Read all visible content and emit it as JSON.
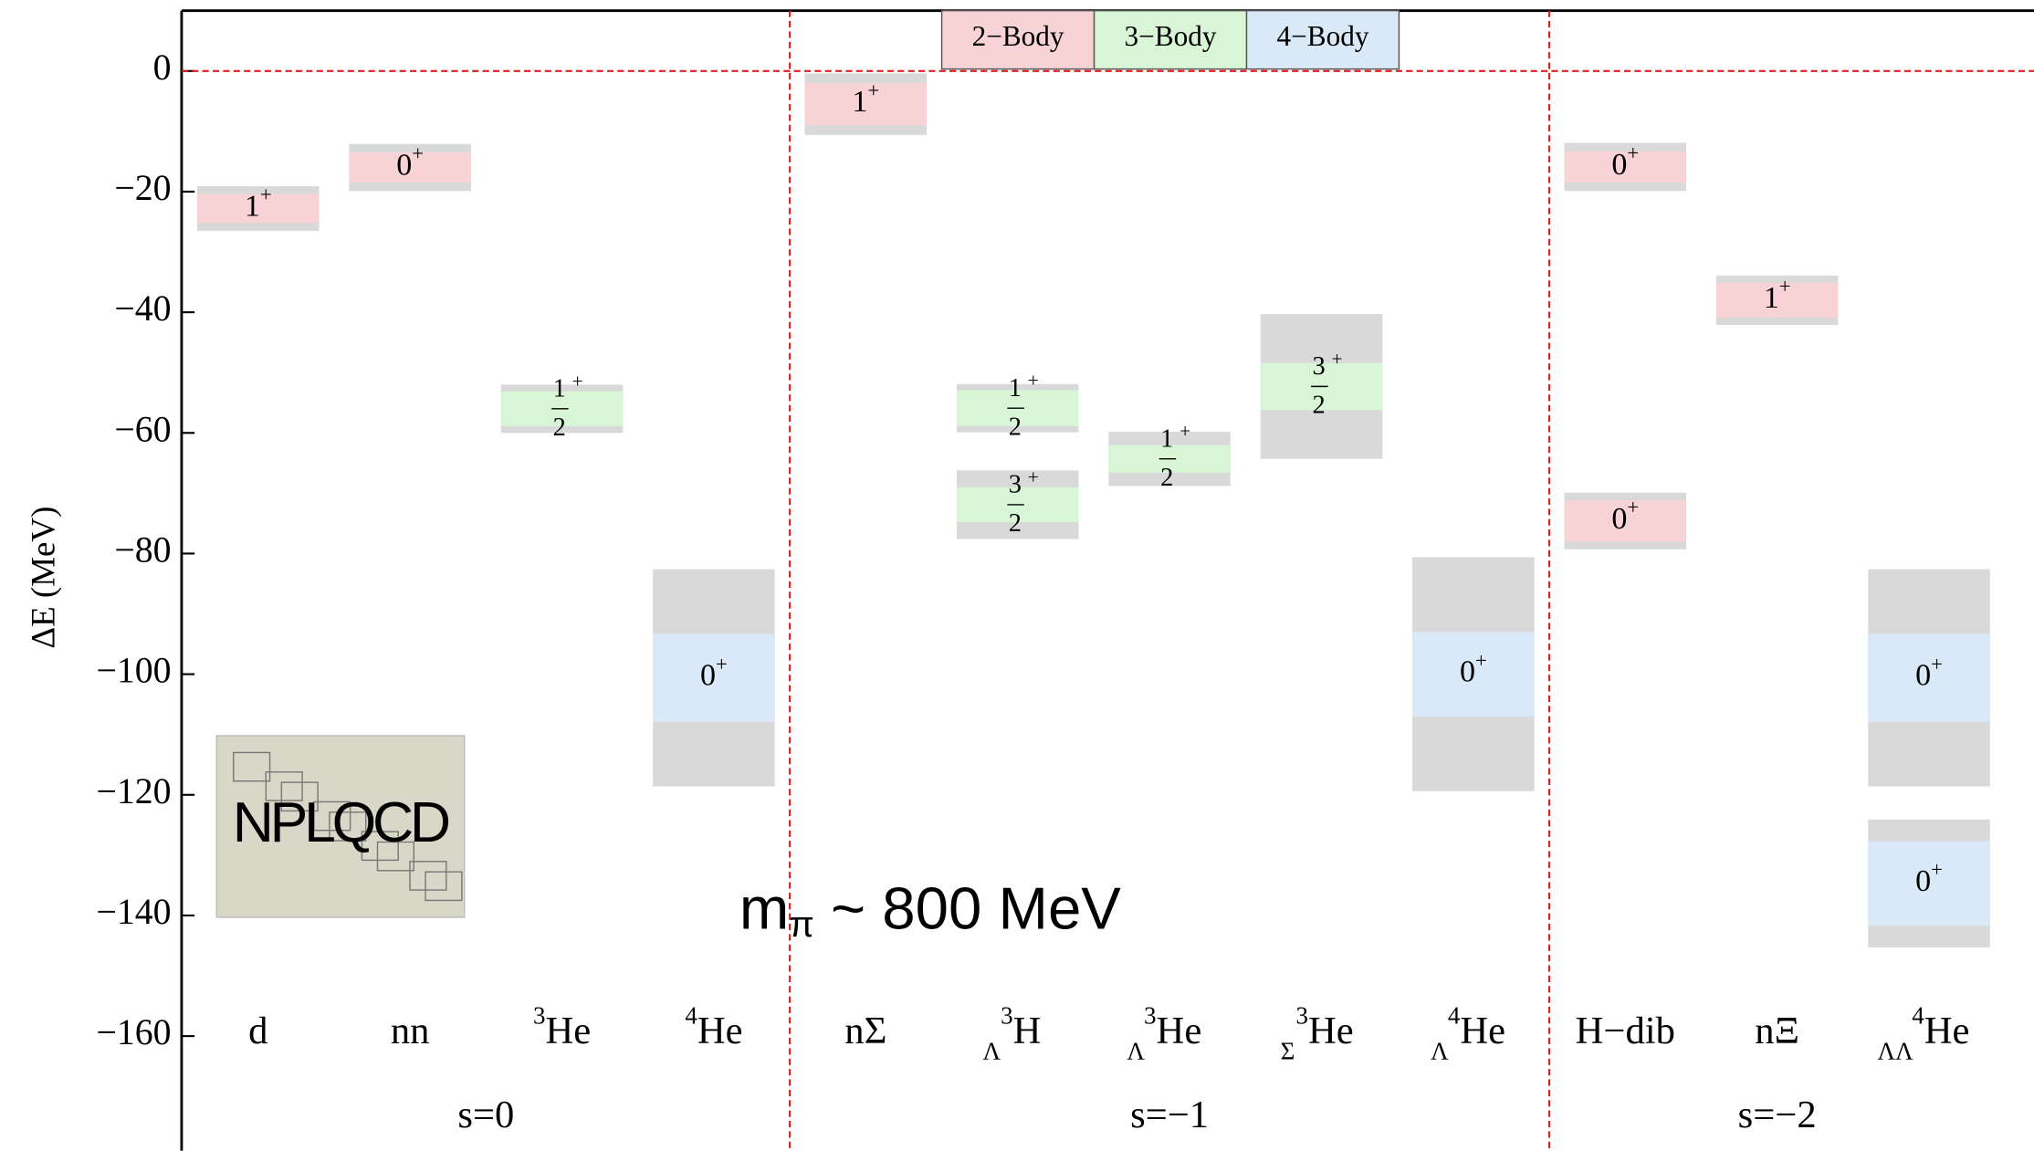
{
  "chart_data": {
    "type": "level",
    "y_label": "ΔE  (MeV)",
    "ylim": [
      -179,
      10
    ],
    "yticks": [
      {
        "value": 0,
        "label": "0"
      },
      {
        "value": -20,
        "label": "−20"
      },
      {
        "value": -40,
        "label": "−40"
      },
      {
        "value": -60,
        "label": "−60"
      },
      {
        "value": -80,
        "label": "−80"
      },
      {
        "value": -100,
        "label": "−100"
      },
      {
        "value": -120,
        "label": "−120"
      },
      {
        "value": -140,
        "label": "−140"
      },
      {
        "value": -160,
        "label": "−160"
      }
    ],
    "zero_line_color": "#e02020",
    "band_color": "#d9d9d9",
    "categories": [
      {
        "text": "d"
      },
      {
        "text": "nn"
      },
      {
        "sup": "3",
        "text": "He"
      },
      {
        "sup": "4",
        "text": "He"
      },
      {
        "text": "nΣ"
      },
      {
        "sup": "3",
        "sub": "Λ",
        "text": "H"
      },
      {
        "sup": "3",
        "sub": "Λ",
        "text": "He"
      },
      {
        "sup": "3",
        "sub": "Σ",
        "text": "He"
      },
      {
        "sup": "4",
        "sub": "Λ",
        "text": "He"
      },
      {
        "text": "H−dib"
      },
      {
        "text": "nΞ"
      },
      {
        "sup": "4",
        "sub": "ΛΛ",
        "text": "He"
      }
    ],
    "sectors": [
      {
        "label": "s=0",
        "from": 0,
        "to": 3
      },
      {
        "label": "s=−1",
        "from": 4,
        "to": 8
      },
      {
        "label": "s=−2",
        "from": 9,
        "to": 11
      }
    ],
    "series": [
      {
        "name": "2−Body",
        "color": "#f8d3d6"
      },
      {
        "name": "3−Body",
        "color": "#d8f5d5"
      },
      {
        "name": "4−Body",
        "color": "#d9e9f8"
      }
    ],
    "levels": [
      {
        "category": 0,
        "series": 0,
        "value": -22.8,
        "err_stat": 2.4,
        "err_total": 3.7,
        "j": "1",
        "parity": "+"
      },
      {
        "category": 1,
        "series": 0,
        "value": -16.0,
        "err_stat": 2.5,
        "err_total": 3.9,
        "j": "0",
        "parity": "+"
      },
      {
        "category": 2,
        "series": 1,
        "value": -56.0,
        "err_stat": 2.9,
        "err_total": 4.0,
        "j": "1",
        "j_den": "2",
        "parity": "+"
      },
      {
        "category": 3,
        "series": 2,
        "value": -100.6,
        "err_stat": 7.3,
        "err_total": 18.0,
        "j": "0",
        "parity": "+"
      },
      {
        "category": 4,
        "series": 0,
        "value": -5.5,
        "err_stat": 3.5,
        "err_total": 5.1,
        "j": "1",
        "parity": "+"
      },
      {
        "category": 5,
        "series": 1,
        "value": -55.9,
        "err_stat": 3.0,
        "err_total": 4.0,
        "j": "1",
        "j_den": "2",
        "parity": "+"
      },
      {
        "category": 5,
        "series": 1,
        "value": -71.9,
        "err_stat": 2.9,
        "err_total": 5.7,
        "j": "3",
        "j_den": "2",
        "parity": "+"
      },
      {
        "category": 6,
        "series": 1,
        "value": -64.3,
        "err_stat": 2.3,
        "err_total": 4.5,
        "j": "1",
        "j_den": "2",
        "parity": "+"
      },
      {
        "category": 7,
        "series": 1,
        "value": -52.3,
        "err_stat": 3.9,
        "err_total": 12.0,
        "j": "3",
        "j_den": "2",
        "parity": "+"
      },
      {
        "category": 8,
        "series": 2,
        "value": -100.0,
        "err_stat": 7.0,
        "err_total": 19.4,
        "j": "0",
        "parity": "+"
      },
      {
        "category": 9,
        "series": 0,
        "value": -15.9,
        "err_stat": 2.6,
        "err_total": 4.0,
        "j": "0",
        "parity": "+"
      },
      {
        "category": 9,
        "series": 0,
        "value": -74.6,
        "err_stat": 3.4,
        "err_total": 4.7,
        "j": "0",
        "parity": "+"
      },
      {
        "category": 10,
        "series": 0,
        "value": -38.0,
        "err_stat": 2.9,
        "err_total": 4.1,
        "j": "1",
        "parity": "+"
      },
      {
        "category": 11,
        "series": 2,
        "value": -100.6,
        "err_stat": 7.3,
        "err_total": 18.0,
        "j": "0",
        "parity": "+"
      },
      {
        "category": 11,
        "series": 2,
        "value": -134.7,
        "err_stat": 7.0,
        "err_total": 10.6,
        "j": "0",
        "parity": "+"
      }
    ],
    "annotation": {
      "main": "m",
      "sub": "π",
      "rest": " ~ 800 MeV"
    },
    "logo": "NPLQCD"
  }
}
